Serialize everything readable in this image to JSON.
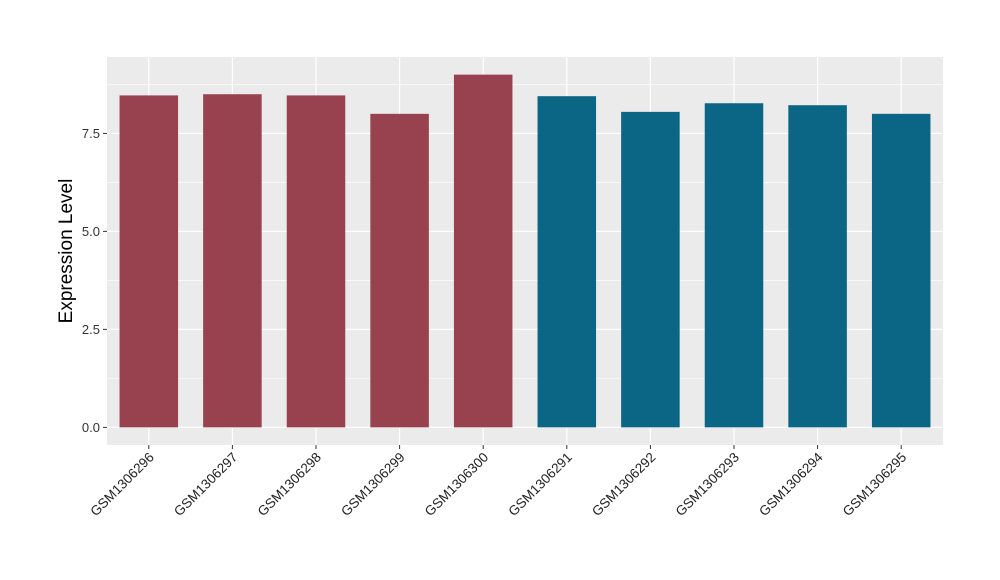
{
  "chart_data": {
    "type": "bar",
    "ylabel": "Expression Level",
    "xlabel": "",
    "categories": [
      "GSM1306296",
      "GSM1306297",
      "GSM1306298",
      "GSM1306299",
      "GSM1306300",
      "GSM1306291",
      "GSM1306292",
      "GSM1306293",
      "GSM1306294",
      "GSM1306295"
    ],
    "values": [
      8.47,
      8.5,
      8.47,
      8.0,
      9.0,
      8.45,
      8.05,
      8.27,
      8.22,
      8.0
    ],
    "bar_colors": [
      "#99424f",
      "#99424f",
      "#99424f",
      "#99424f",
      "#99424f",
      "#0b6584",
      "#0b6584",
      "#0b6584",
      "#0b6584",
      "#0b6584"
    ],
    "ylim": [
      -0.45,
      9.45
    ],
    "yticks": [
      0.0,
      2.5,
      5.0,
      7.5
    ],
    "ytick_labels": [
      "0.0",
      "2.5",
      "5.0",
      "7.5"
    ],
    "grid": true,
    "panel_background": "#ebebeb",
    "grid_color": "#ffffff"
  }
}
